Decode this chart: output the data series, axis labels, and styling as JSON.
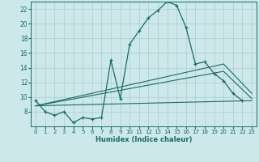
{
  "xlabel": "Humidex (Indice chaleur)",
  "bg_color": "#cce8ea",
  "grid_color": "#aacdd0",
  "line_color": "#1a6b6b",
  "xlim": [
    -0.5,
    23.5
  ],
  "ylim": [
    6,
    23
  ],
  "xticks": [
    0,
    1,
    2,
    3,
    4,
    5,
    6,
    7,
    8,
    9,
    10,
    11,
    12,
    13,
    14,
    15,
    16,
    17,
    18,
    19,
    20,
    21,
    22,
    23
  ],
  "yticks": [
    8,
    10,
    12,
    14,
    16,
    18,
    20,
    22
  ],
  "series1_x": [
    0,
    1,
    2,
    3,
    4,
    5,
    6,
    7,
    8,
    9,
    10,
    11,
    12,
    13,
    14,
    15,
    16,
    17,
    18,
    19,
    20,
    21,
    22
  ],
  "series1_y": [
    9.5,
    8.0,
    7.5,
    8.0,
    6.5,
    7.2,
    7.0,
    7.2,
    15.0,
    9.8,
    17.2,
    19.0,
    20.8,
    21.8,
    23.0,
    22.5,
    19.5,
    14.5,
    14.8,
    13.2,
    12.2,
    10.5,
    9.5
  ],
  "line2_x": [
    0,
    23
  ],
  "line2_y": [
    8.8,
    9.5
  ],
  "line3_x": [
    0,
    20,
    23
  ],
  "line3_y": [
    8.8,
    13.5,
    9.8
  ],
  "line4_x": [
    0,
    20,
    23
  ],
  "line4_y": [
    8.8,
    14.5,
    10.5
  ]
}
